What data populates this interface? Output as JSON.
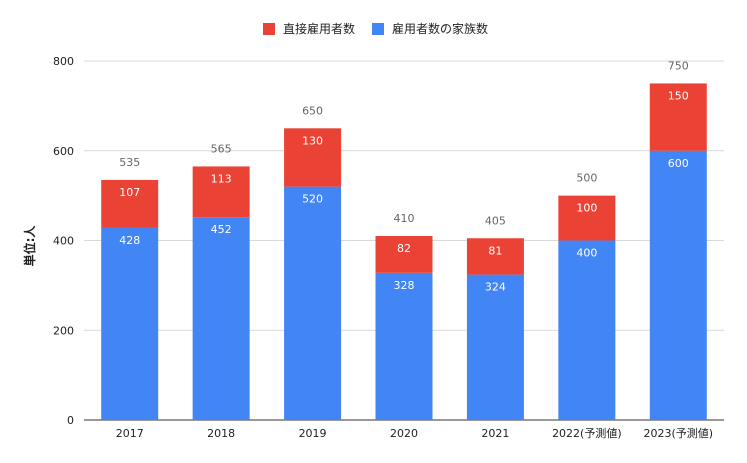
{
  "chart_data": {
    "type": "bar",
    "stacked": true,
    "categories": [
      "2017",
      "2018",
      "2019",
      "2020",
      "2021",
      "2022(予測値)",
      "2023(予測値)"
    ],
    "series": [
      {
        "name": "雇用者数の家族数",
        "color": "#4285f4",
        "values": [
          428,
          452,
          520,
          328,
          324,
          400,
          600
        ]
      },
      {
        "name": "直接雇用者数",
        "color": "#ea4335",
        "values": [
          107,
          113,
          130,
          82,
          81,
          100,
          150
        ]
      }
    ],
    "totals": [
      535,
      565,
      650,
      410,
      405,
      500,
      750
    ],
    "legend_order": [
      "直接雇用者数",
      "雇用者数の家族数"
    ],
    "legend_position": "top",
    "ylabel": "単位:人",
    "ylim": [
      0,
      800
    ],
    "yticks": [
      0,
      200,
      400,
      600,
      800
    ],
    "grid": true
  }
}
